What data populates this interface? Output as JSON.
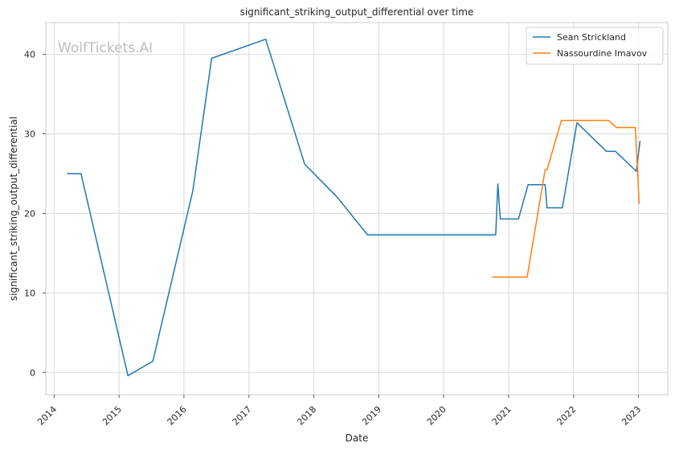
{
  "chart_data": {
    "type": "line",
    "title": "significant_striking_output_differential over time",
    "xlabel": "Date",
    "ylabel": "significant_striking_output_differential",
    "x_ticks": [
      "2014",
      "2015",
      "2016",
      "2017",
      "2018",
      "2019",
      "2020",
      "2021",
      "2022",
      "2023"
    ],
    "y_ticks": [
      "0",
      "10",
      "20",
      "30",
      "40"
    ],
    "xlim": [
      "2013-11-15",
      "2023-06-15"
    ],
    "ylim": [
      -2.8,
      44
    ],
    "grid": true,
    "legend_position": "top-right",
    "watermark": "WolfTickets.AI",
    "series": [
      {
        "name": "Sean Strickland",
        "color": "#1f77b4",
        "points": [
          [
            "2014-03-15",
            25.0
          ],
          [
            "2014-06-01",
            25.0
          ],
          [
            "2015-02-20",
            -0.4
          ],
          [
            "2015-07-10",
            1.4
          ],
          [
            "2016-02-20",
            22.8
          ],
          [
            "2016-06-05",
            39.5
          ],
          [
            "2017-04-05",
            41.9
          ],
          [
            "2017-11-10",
            26.2
          ],
          [
            "2018-05-10",
            22.1
          ],
          [
            "2018-10-30",
            17.3
          ],
          [
            "2020-10-20",
            17.3
          ],
          [
            "2020-11-01",
            23.7
          ],
          [
            "2020-11-15",
            19.3
          ],
          [
            "2021-02-25",
            19.3
          ],
          [
            "2021-04-20",
            23.6
          ],
          [
            "2021-07-25",
            23.6
          ],
          [
            "2021-08-05",
            20.7
          ],
          [
            "2021-10-30",
            20.7
          ],
          [
            "2022-01-20",
            31.4
          ],
          [
            "2022-07-05",
            27.8
          ],
          [
            "2022-08-25",
            27.8
          ],
          [
            "2022-12-20",
            25.3
          ],
          [
            "2023-01-10",
            29.1
          ]
        ]
      },
      {
        "name": "Nassourdine Imavov",
        "color": "#ff7f0e",
        "points": [
          [
            "2020-10-01",
            12.0
          ],
          [
            "2021-04-15",
            12.0
          ],
          [
            "2021-07-25",
            25.5
          ],
          [
            "2021-08-05",
            25.5
          ],
          [
            "2021-10-25",
            31.7
          ],
          [
            "2022-07-15",
            31.7
          ],
          [
            "2022-08-30",
            30.8
          ],
          [
            "2022-12-15",
            30.8
          ],
          [
            "2023-01-05",
            21.2
          ]
        ]
      }
    ]
  }
}
